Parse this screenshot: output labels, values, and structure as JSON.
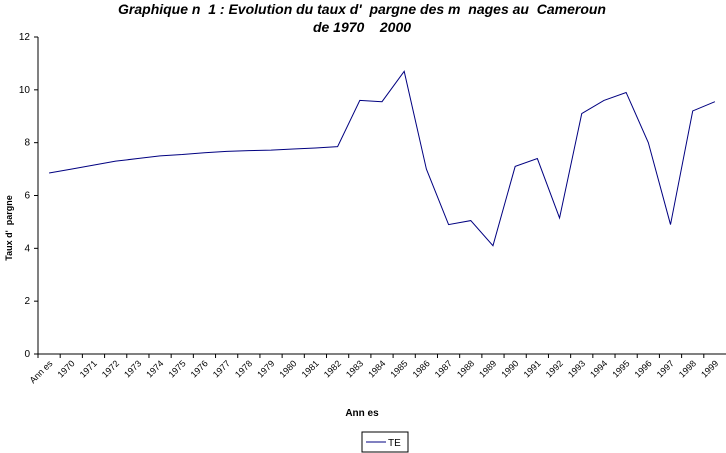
{
  "chart_data": {
    "type": "line",
    "title": [
      "Graphique n  1 : Evolution du taux d'  pargne des m  nages au  Cameroun",
      "de 1970    2000"
    ],
    "x_label": "Ann es",
    "y_label": "Taux d'  pargne",
    "categories": [
      "Ann es",
      "1970",
      "1971",
      "1972",
      "1973",
      "1974",
      "1975",
      "1976",
      "1977",
      "1978",
      "1979",
      "1980",
      "1981",
      "1982",
      "1983",
      "1984",
      "1985",
      "1986",
      "1987",
      "1988",
      "1989",
      "1990",
      "1991",
      "1992",
      "1993",
      "1994",
      "1995",
      "1996",
      "1997",
      "1998",
      "1999"
    ],
    "series": [
      {
        "name": "TE",
        "color": "#000080",
        "values": [
          6.85,
          7.0,
          7.15,
          7.3,
          7.4,
          7.5,
          7.55,
          7.62,
          7.67,
          7.7,
          7.72,
          7.76,
          7.8,
          7.85,
          9.6,
          9.55,
          10.7,
          7.0,
          4.9,
          5.05,
          4.1,
          7.1,
          7.4,
          5.15,
          9.1,
          9.6,
          9.9,
          8.0,
          4.9,
          9.2,
          9.55
        ]
      }
    ],
    "ylim": [
      0,
      12
    ],
    "yticks": [
      0,
      2,
      4,
      6,
      8,
      10,
      12
    ],
    "grid": false,
    "legend": "bottom"
  }
}
